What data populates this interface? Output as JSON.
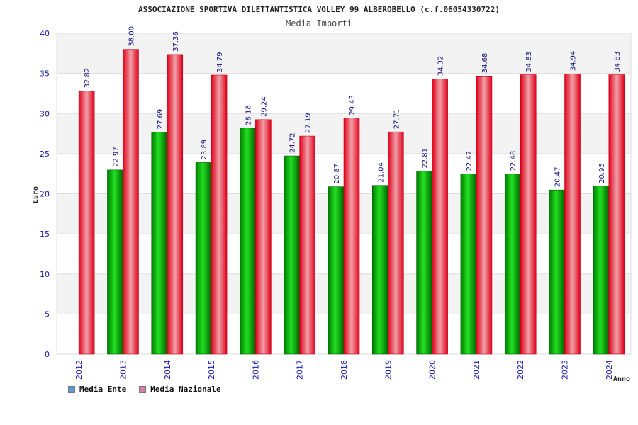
{
  "chart_data": {
    "type": "bar",
    "title": "ASSOCIAZIONE SPORTIVA DILETTANTISTICA VOLLEY 99 ALBEROBELLO (c.f.06054330722)",
    "subtitle": "Media Importi",
    "xlabel": "Anno",
    "ylabel": "Euro",
    "ylim": [
      0,
      40
    ],
    "yticks": [
      "0",
      "5",
      "10",
      "15",
      "20",
      "25",
      "30",
      "35",
      "40"
    ],
    "grid": true,
    "legend_position": "bottom-left",
    "categories": [
      "2012",
      "2013",
      "2014",
      "2015",
      "2016",
      "2017",
      "2018",
      "2019",
      "2020",
      "2021",
      "2022",
      "2023",
      "2024"
    ],
    "series": [
      {
        "name": "Media Ente",
        "color": "#00b400",
        "legend_color": "#5b9bd5",
        "values": [
          null,
          22.97,
          27.69,
          23.89,
          28.18,
          24.72,
          20.87,
          21.04,
          22.81,
          22.47,
          22.48,
          20.47,
          20.95
        ],
        "labels": [
          "",
          "22.97",
          "27.69",
          "23.89",
          "28.18",
          "24.72",
          "20.87",
          "21.04",
          "22.81",
          "22.47",
          "22.48",
          "20.47",
          "20.95"
        ]
      },
      {
        "name": "Media Nazionale",
        "color": "#e8001c",
        "legend_color": "#e07bb0",
        "values": [
          32.82,
          38.0,
          37.36,
          34.79,
          29.24,
          27.19,
          29.43,
          27.71,
          34.32,
          34.68,
          34.83,
          34.94,
          34.83
        ],
        "labels": [
          "32.82",
          "38.00",
          "37.36",
          "34.79",
          "29.24",
          "27.19",
          "29.43",
          "27.71",
          "34.32",
          "34.68",
          "34.83",
          "34.94",
          "34.83"
        ]
      }
    ]
  }
}
